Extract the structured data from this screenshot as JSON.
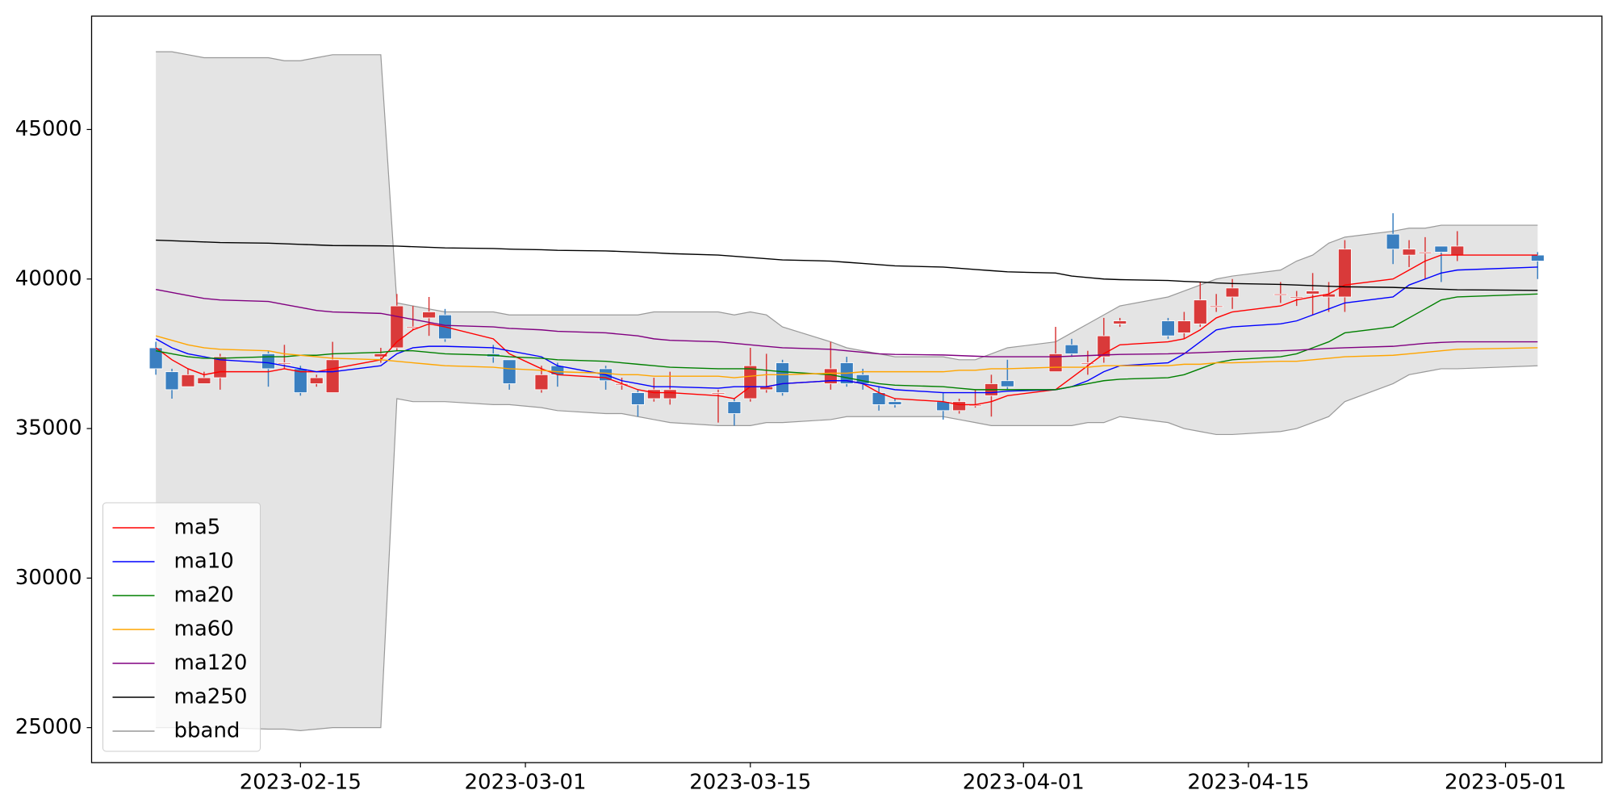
{
  "chart_data": {
    "type": "candlestick",
    "x": [
      "2023-02-06",
      "2023-02-07",
      "2023-02-08",
      "2023-02-09",
      "2023-02-10",
      "2023-02-13",
      "2023-02-14",
      "2023-02-15",
      "2023-02-16",
      "2023-02-17",
      "2023-02-20",
      "2023-02-21",
      "2023-02-22",
      "2023-02-23",
      "2023-02-24",
      "2023-02-27",
      "2023-02-28",
      "2023-03-02",
      "2023-03-03",
      "2023-03-06",
      "2023-03-07",
      "2023-03-08",
      "2023-03-09",
      "2023-03-10",
      "2023-03-13",
      "2023-03-14",
      "2023-03-15",
      "2023-03-16",
      "2023-03-17",
      "2023-03-20",
      "2023-03-21",
      "2023-03-22",
      "2023-03-23",
      "2023-03-24",
      "2023-03-27",
      "2023-03-28",
      "2023-03-29",
      "2023-03-30",
      "2023-03-31",
      "2023-04-03",
      "2023-04-04",
      "2023-04-05",
      "2023-04-06",
      "2023-04-07",
      "2023-04-10",
      "2023-04-11",
      "2023-04-12",
      "2023-04-13",
      "2023-04-14",
      "2023-04-17",
      "2023-04-18",
      "2023-04-19",
      "2023-04-20",
      "2023-04-21",
      "2023-04-24",
      "2023-04-25",
      "2023-04-26",
      "2023-04-27",
      "2023-04-28",
      "2023-05-03"
    ],
    "open": [
      37700,
      36900,
      36400,
      36500,
      36700,
      37500,
      37200,
      37000,
      36500,
      36200,
      37400,
      37700,
      38400,
      38700,
      38800,
      37500,
      37300,
      36300,
      37100,
      37000,
      36500,
      36200,
      36000,
      36000,
      36200,
      35900,
      36000,
      36300,
      37200,
      36500,
      37200,
      36800,
      36200,
      35900,
      35900,
      35600,
      35800,
      36100,
      36600,
      36900,
      37800,
      37200,
      37400,
      38500,
      38600,
      38200,
      38500,
      39100,
      39400,
      39500,
      39400,
      39500,
      39400,
      39400,
      41500,
      40800,
      40900,
      41100,
      40800,
      40800
    ],
    "high": [
      37900,
      37000,
      37000,
      36900,
      37500,
      37600,
      37800,
      37100,
      36800,
      37900,
      37700,
      39500,
      39100,
      39400,
      39000,
      37800,
      37300,
      37100,
      37200,
      37100,
      36700,
      36300,
      36700,
      36900,
      36300,
      36000,
      37700,
      37500,
      37300,
      37900,
      37400,
      37000,
      36400,
      36000,
      36200,
      36000,
      36300,
      36800,
      37300,
      38400,
      38000,
      37600,
      38700,
      38700,
      38700,
      38900,
      39900,
      39500,
      40000,
      39900,
      39600,
      40200,
      39900,
      41300,
      42200,
      41300,
      41400,
      41100,
      41600,
      40900
    ],
    "low": [
      36800,
      36000,
      36400,
      36500,
      36300,
      36400,
      37000,
      36100,
      36400,
      36200,
      37200,
      37600,
      38300,
      38100,
      37900,
      37200,
      36300,
      36200,
      36400,
      36300,
      36300,
      35400,
      35900,
      35800,
      35200,
      35100,
      35900,
      36200,
      36100,
      36300,
      36400,
      36300,
      35600,
      35700,
      35300,
      35500,
      35700,
      35400,
      36300,
      36900,
      37400,
      36800,
      37200,
      38400,
      38000,
      38000,
      38400,
      38900,
      39000,
      39200,
      39100,
      38800,
      38900,
      38900,
      40500,
      40400,
      40000,
      39900,
      40600,
      40000
    ],
    "close": [
      37000,
      36300,
      36800,
      36700,
      37400,
      37000,
      37200,
      36200,
      36700,
      37300,
      37500,
      39100,
      38400,
      38900,
      38000,
      37400,
      36500,
      36800,
      36800,
      36600,
      36500,
      35800,
      36300,
      36300,
      36200,
      35500,
      37100,
      36400,
      36200,
      37000,
      36500,
      36500,
      35800,
      35800,
      35600,
      35900,
      35800,
      36500,
      36400,
      37500,
      37500,
      37200,
      38100,
      38600,
      38100,
      38600,
      39300,
      39100,
      39700,
      39500,
      39400,
      39600,
      39500,
      41000,
      41000,
      41000,
      40900,
      40900,
      41100,
      40600
    ],
    "up_color": "#d93a3a",
    "down_color": "#3a7fc0",
    "series": [
      {
        "name": "ma5",
        "color": "#ff0000",
        "values": [
          37700,
          37300,
          37000,
          36800,
          36900,
          36900,
          37000,
          36900,
          36900,
          37000,
          37300,
          37900,
          38300,
          38500,
          38400,
          38000,
          37500,
          37000,
          36800,
          36700,
          36500,
          36300,
          36200,
          36200,
          36100,
          36000,
          36400,
          36400,
          36500,
          36600,
          36600,
          36500,
          36200,
          36000,
          35900,
          35800,
          35800,
          35900,
          36100,
          36300,
          36700,
          37100,
          37500,
          37800,
          37900,
          38000,
          38300,
          38700,
          38900,
          39100,
          39300,
          39400,
          39500,
          39800,
          40000,
          40300,
          40600,
          40800,
          40800,
          40800
        ]
      },
      {
        "name": "ma10",
        "color": "#0000ff",
        "values": [
          38000,
          37700,
          37500,
          37400,
          37300,
          37200,
          37100,
          37000,
          36900,
          36900,
          37100,
          37500,
          37700,
          37750,
          37750,
          37700,
          37600,
          37400,
          37100,
          36800,
          36600,
          36500,
          36400,
          36400,
          36350,
          36400,
          36400,
          36400,
          36500,
          36600,
          36600,
          36500,
          36400,
          36300,
          36200,
          36200,
          36200,
          36200,
          36250,
          36300,
          36400,
          36600,
          36900,
          37100,
          37200,
          37500,
          37900,
          38300,
          38400,
          38500,
          38600,
          38800,
          39000,
          39200,
          39400,
          39800,
          40000,
          40200,
          40300,
          40400
        ]
      },
      {
        "name": "ma20",
        "color": "#008000",
        "values": [
          37600,
          37500,
          37400,
          37350,
          37350,
          37400,
          37400,
          37450,
          37450,
          37500,
          37550,
          37600,
          37600,
          37550,
          37500,
          37450,
          37400,
          37350,
          37300,
          37250,
          37200,
          37150,
          37100,
          37050,
          37000,
          37000,
          37000,
          36950,
          36900,
          36800,
          36700,
          36600,
          36500,
          36450,
          36400,
          36350,
          36300,
          36300,
          36300,
          36300,
          36400,
          36500,
          36600,
          36650,
          36700,
          36800,
          37000,
          37200,
          37300,
          37400,
          37500,
          37700,
          37900,
          38200,
          38400,
          38700,
          39000,
          39300,
          39400,
          39500
        ]
      },
      {
        "name": "ma60",
        "color": "#ffa500",
        "values": [
          38100,
          37950,
          37800,
          37700,
          37650,
          37600,
          37500,
          37450,
          37400,
          37350,
          37300,
          37250,
          37200,
          37150,
          37100,
          37050,
          37000,
          36950,
          36900,
          36850,
          36800,
          36800,
          36750,
          36750,
          36750,
          36700,
          36750,
          36800,
          36800,
          36850,
          36850,
          36900,
          36900,
          36900,
          36900,
          36950,
          36950,
          37000,
          37000,
          37050,
          37050,
          37050,
          37100,
          37100,
          37100,
          37150,
          37150,
          37200,
          37200,
          37250,
          37250,
          37300,
          37350,
          37400,
          37450,
          37500,
          37550,
          37600,
          37650,
          37700
        ]
      },
      {
        "name": "ma120",
        "color": "#800080",
        "values": [
          39650,
          39550,
          39450,
          39350,
          39300,
          39250,
          39150,
          39050,
          38950,
          38900,
          38850,
          38750,
          38650,
          38550,
          38450,
          38400,
          38350,
          38300,
          38250,
          38200,
          38150,
          38100,
          38000,
          37950,
          37900,
          37850,
          37800,
          37750,
          37700,
          37650,
          37600,
          37550,
          37500,
          37480,
          37460,
          37440,
          37420,
          37400,
          37400,
          37400,
          37420,
          37440,
          37460,
          37480,
          37500,
          37520,
          37540,
          37560,
          37580,
          37600,
          37620,
          37650,
          37680,
          37700,
          37750,
          37800,
          37850,
          37880,
          37900,
          37900
        ]
      },
      {
        "name": "ma250",
        "color": "#000000",
        "values": [
          41300,
          41280,
          41260,
          41240,
          41220,
          41200,
          41180,
          41160,
          41140,
          41120,
          41110,
          41100,
          41080,
          41060,
          41040,
          41020,
          41000,
          40980,
          40960,
          40940,
          40920,
          40900,
          40880,
          40850,
          40800,
          40760,
          40720,
          40680,
          40640,
          40600,
          40560,
          40520,
          40480,
          40440,
          40400,
          40360,
          40320,
          40280,
          40240,
          40200,
          40100,
          40050,
          40000,
          39980,
          39950,
          39920,
          39900,
          39870,
          39850,
          39820,
          39800,
          39780,
          39760,
          39740,
          39720,
          39700,
          39680,
          39660,
          39640,
          39620
        ]
      }
    ],
    "bband": {
      "name": "bband",
      "color": "#999999",
      "fill": "#e4e4e4",
      "upper": [
        47600,
        47600,
        47500,
        47400,
        47400,
        47400,
        47300,
        47300,
        47400,
        47500,
        47500,
        39200,
        39100,
        39000,
        38900,
        38900,
        38800,
        38800,
        38800,
        38800,
        38800,
        38800,
        38900,
        38900,
        38900,
        38800,
        38900,
        38800,
        38400,
        37900,
        37700,
        37600,
        37500,
        37400,
        37400,
        37300,
        37300,
        37500,
        37700,
        37900,
        38200,
        38500,
        38800,
        39100,
        39400,
        39600,
        39800,
        40000,
        40100,
        40300,
        40600,
        40800,
        41200,
        41400,
        41600,
        41700,
        41700,
        41800,
        41800,
        41800
      ],
      "lower": [
        25000,
        25000,
        25000,
        25000,
        25000,
        24950,
        24950,
        24900,
        24950,
        25000,
        25000,
        36000,
        35900,
        35900,
        35900,
        35800,
        35800,
        35700,
        35600,
        35500,
        35500,
        35400,
        35300,
        35200,
        35100,
        35100,
        35100,
        35200,
        35200,
        35300,
        35400,
        35400,
        35400,
        35400,
        35400,
        35300,
        35200,
        35100,
        35100,
        35100,
        35100,
        35200,
        35200,
        35400,
        35200,
        35000,
        34900,
        34800,
        34800,
        34900,
        35000,
        35200,
        35400,
        35900,
        36500,
        36800,
        36900,
        37000,
        37000,
        37100
      ]
    },
    "xlim": [
      "2023-02-02",
      "2023-05-07"
    ],
    "xticks": [
      "2023-02-15",
      "2023-03-01",
      "2023-03-15",
      "2023-04-01",
      "2023-04-15",
      "2023-05-01"
    ],
    "ylim": [
      23830,
      48790
    ],
    "yticks": [
      25000,
      30000,
      35000,
      40000,
      45000
    ],
    "legend": "lower left"
  }
}
